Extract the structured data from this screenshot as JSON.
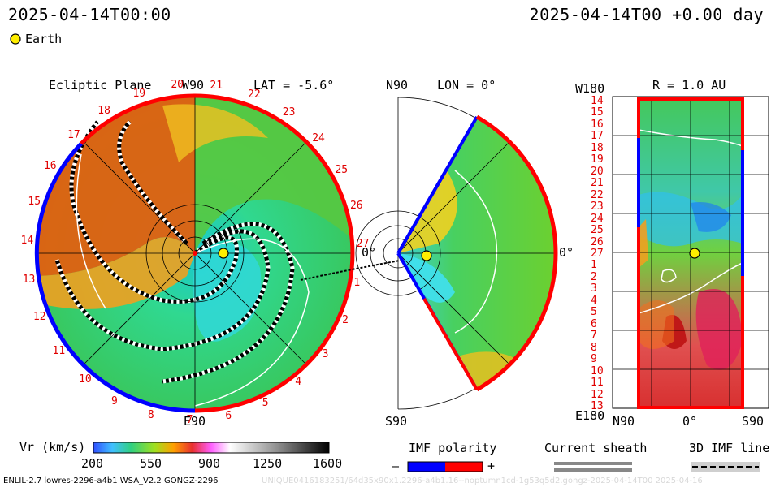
{
  "header": {
    "datetime_left": "2025-04-14T00:00",
    "datetime_right": "2025-04-14T00 +0.00 day",
    "earth_legend": "Earth"
  },
  "panels": {
    "ecliptic": {
      "title": "Ecliptic Plane",
      "top_label": "W90",
      "lat_label": "LAT = -5.6°",
      "bottom_label": "E90",
      "right_label": "0°",
      "sector_numbers": [
        "20",
        "21",
        "22",
        "23",
        "24",
        "25",
        "26",
        "27",
        "1",
        "2",
        "3",
        "4",
        "5",
        "6",
        "7",
        "8",
        "9",
        "10",
        "11",
        "12",
        "13",
        "14",
        "15",
        "16",
        "17",
        "18",
        "19"
      ]
    },
    "meridional": {
      "top_label": "N90",
      "lon_label": "LON = 0°",
      "bottom_label": "S90",
      "right_label": "0°"
    },
    "map": {
      "top_left_label": "W180",
      "title": "R = 1.0 AU",
      "bottom_left_label": "E180",
      "x_labels": [
        "N90",
        "0°",
        "S90"
      ],
      "y_labels": [
        "14",
        "15",
        "16",
        "17",
        "18",
        "19",
        "20",
        "21",
        "22",
        "23",
        "24",
        "25",
        "26",
        "27",
        "1",
        "2",
        "3",
        "4",
        "5",
        "6",
        "7",
        "8",
        "9",
        "10",
        "11",
        "12",
        "13"
      ]
    }
  },
  "colorbar": {
    "title": "Vr (km/s)",
    "ticks": [
      "200",
      "550",
      "900",
      "1250",
      "1600"
    ]
  },
  "legend": {
    "imf_polarity_title": "IMF polarity",
    "minus": "–",
    "plus": "+",
    "current_sheath_title": "Current sheath",
    "imf_line_title": "3D IMF line"
  },
  "footer": {
    "model_text": "ENLIL-2.7 lowres-2296-a4b1 WSA_V2.2 GONGZ-2296",
    "faint_text": "UNIQUE0416183251/64d35x90x1.2296-a4b1.16--noptumn1cd-1g53q5d2.gongz-2025-04-14T00 2025-04-16"
  },
  "colors": {
    "positive_polarity": "#ff0000",
    "negative_polarity": "#0000ff",
    "earth_marker": "#ffee00"
  }
}
